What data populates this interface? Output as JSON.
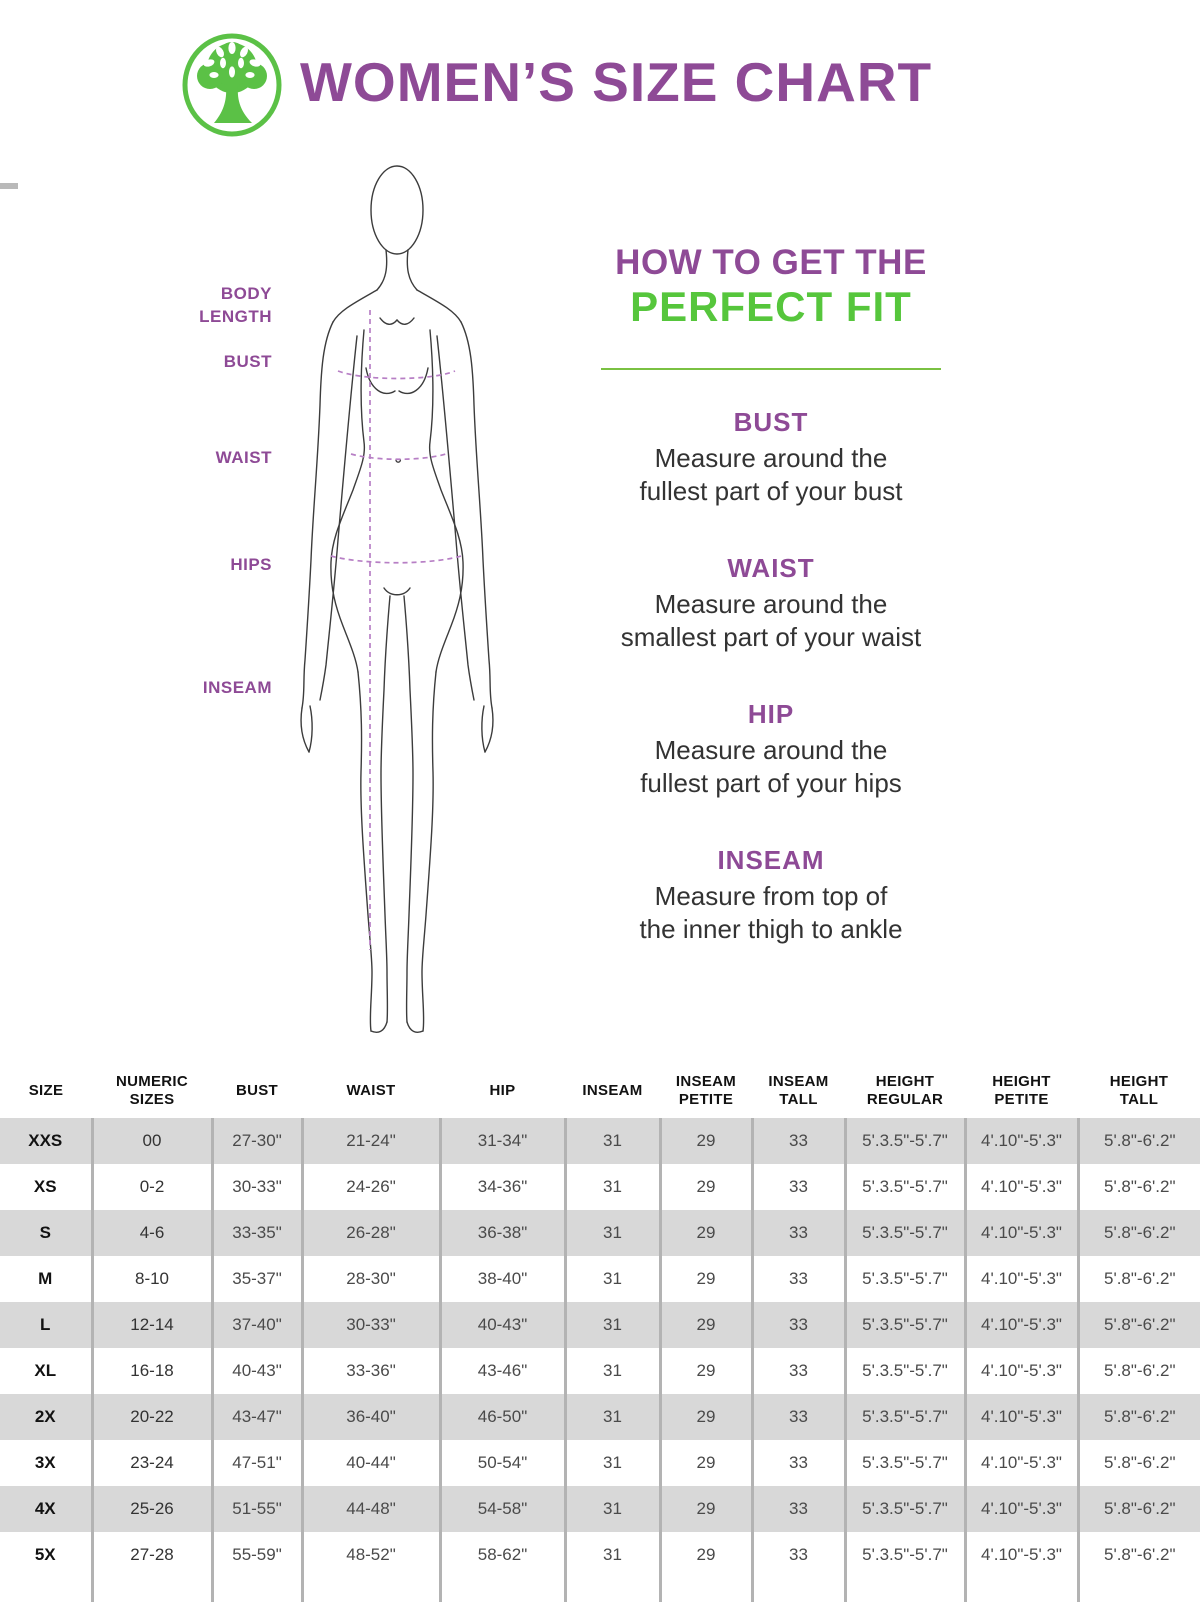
{
  "header": {
    "title": "WOMEN’S SIZE CHART"
  },
  "figure": {
    "labels": [
      "BODY LENGTH",
      "BUST",
      "WAIST",
      "HIPS",
      "INSEAM"
    ]
  },
  "guide": {
    "heading_line1": "HOW TO GET THE",
    "heading_line2": "PERFECT FIT",
    "sections": [
      {
        "title": "BUST",
        "lines": [
          "Measure around the",
          "fullest part of your bust"
        ]
      },
      {
        "title": "WAIST",
        "lines": [
          "Measure around the",
          "smallest part of your waist"
        ]
      },
      {
        "title": "HIP",
        "lines": [
          "Measure around the",
          "fullest part of your hips"
        ]
      },
      {
        "title": "INSEAM",
        "lines": [
          "Measure from top of",
          "the inner thigh to ankle"
        ]
      }
    ]
  },
  "table": {
    "columns": [
      "SIZE",
      "NUMERIC\nSIZES",
      "BUST",
      "WAIST",
      "HIP",
      "INSEAM",
      "INSEAM\nPETITE",
      "INSEAM\nTALL",
      "HEIGHT\nREGULAR",
      "HEIGHT\nPETITE",
      "HEIGHT\nTALL"
    ],
    "rows": [
      [
        "XXS",
        "00",
        "27-30\"",
        "21-24\"",
        "31-34\"",
        "31",
        "29",
        "33",
        "5'.3.5\"-5'.7\"",
        "4'.10\"-5'.3\"",
        "5'.8\"-6'.2\""
      ],
      [
        "XS",
        "0-2",
        "30-33\"",
        "24-26\"",
        "34-36\"",
        "31",
        "29",
        "33",
        "5'.3.5\"-5'.7\"",
        "4'.10\"-5'.3\"",
        "5'.8\"-6'.2\""
      ],
      [
        "S",
        "4-6",
        "33-35\"",
        "26-28\"",
        "36-38\"",
        "31",
        "29",
        "33",
        "5'.3.5\"-5'.7\"",
        "4'.10\"-5'.3\"",
        "5'.8\"-6'.2\""
      ],
      [
        "M",
        "8-10",
        "35-37\"",
        "28-30\"",
        "38-40\"",
        "31",
        "29",
        "33",
        "5'.3.5\"-5'.7\"",
        "4'.10\"-5'.3\"",
        "5'.8\"-6'.2\""
      ],
      [
        "L",
        "12-14",
        "37-40\"",
        "30-33\"",
        "40-43\"",
        "31",
        "29",
        "33",
        "5'.3.5\"-5'.7\"",
        "4'.10\"-5'.3\"",
        "5'.8\"-6'.2\""
      ],
      [
        "XL",
        "16-18",
        "40-43\"",
        "33-36\"",
        "43-46\"",
        "31",
        "29",
        "33",
        "5'.3.5\"-5'.7\"",
        "4'.10\"-5'.3\"",
        "5'.8\"-6'.2\""
      ],
      [
        "2X",
        "20-22",
        "43-47\"",
        "36-40\"",
        "46-50\"",
        "31",
        "29",
        "33",
        "5'.3.5\"-5'.7\"",
        "4'.10\"-5'.3\"",
        "5'.8\"-6'.2\""
      ],
      [
        "3X",
        "23-24",
        "47-51\"",
        "40-44\"",
        "50-54\"",
        "31",
        "29",
        "33",
        "5'.3.5\"-5'.7\"",
        "4'.10\"-5'.3\"",
        "5'.8\"-6'.2\""
      ],
      [
        "4X",
        "25-26",
        "51-55\"",
        "44-48\"",
        "54-58\"",
        "31",
        "29",
        "33",
        "5'.3.5\"-5'.7\"",
        "4'.10\"-5'.3\"",
        "5'.8\"-6'.2\""
      ],
      [
        "5X",
        "27-28",
        "55-59\"",
        "48-52\"",
        "58-62\"",
        "31",
        "29",
        "33",
        "5'.3.5\"-5'.7\"",
        "4'.10\"-5'.3\"",
        "5'.8\"-6'.2\""
      ]
    ]
  },
  "colors": {
    "purple": "#8e4a96",
    "green": "#56c63c",
    "row_gray": "#d8d8d8",
    "divider_gray": "#b3b3b3",
    "dash_purple": "#b77fc5"
  }
}
